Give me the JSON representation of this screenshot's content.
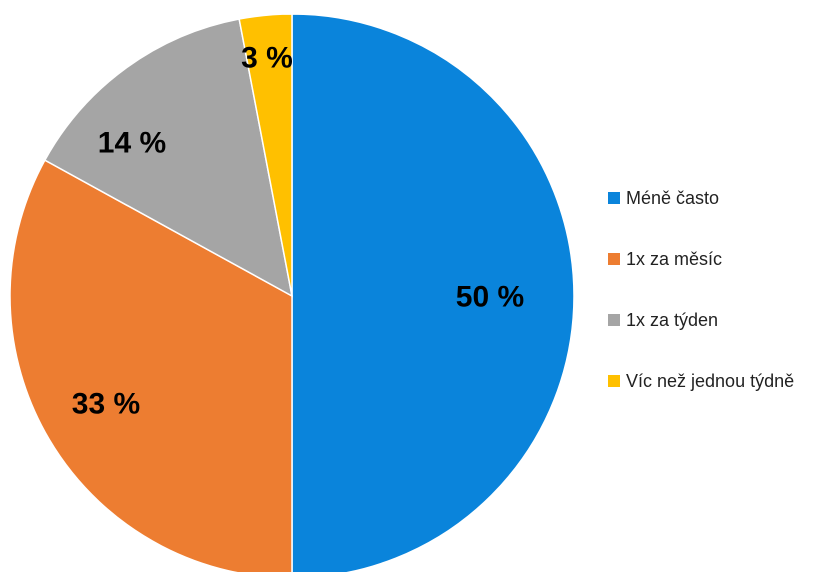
{
  "chart_data": {
    "type": "pie",
    "start_angle_deg": 0,
    "direction": "clockwise",
    "slices": [
      {
        "label": "Méně často",
        "value": 50,
        "display": "50 %",
        "color": "#0A84DB"
      },
      {
        "label": "1x za měsíc",
        "value": 33,
        "display": "33 %",
        "color": "#ED7D31"
      },
      {
        "label": "1x za týden",
        "value": 14,
        "display": "14 %",
        "color": "#A5A5A5"
      },
      {
        "label": "Víc než jednou týdně",
        "value": 3,
        "display": "3 %",
        "color": "#FFC000"
      }
    ],
    "legend_position": "right"
  }
}
